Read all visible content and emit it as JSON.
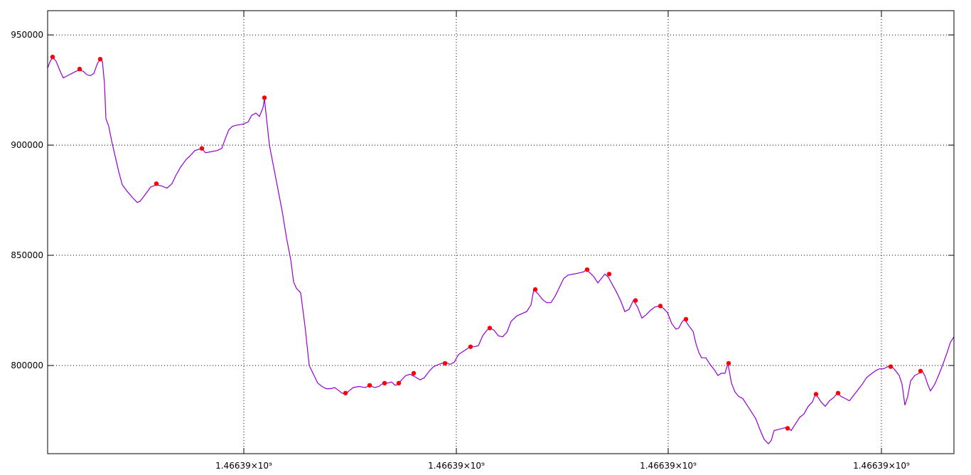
{
  "chart_data": {
    "type": "line",
    "title": "",
    "xlabel": "",
    "ylabel": "",
    "grid": true,
    "legend": "none",
    "colors": {
      "line": "#9400d3",
      "markers": "#ff0000"
    },
    "ylim": [
      760000,
      961000
    ],
    "y_ticks": [
      {
        "value": 800000,
        "label": "800000"
      },
      {
        "value": 850000,
        "label": "850000"
      },
      {
        "value": 900000,
        "label": "900000"
      },
      {
        "value": 950000,
        "label": "950000"
      }
    ],
    "xlim": [
      0,
      1275
    ],
    "x_ticks": [
      {
        "value": 276,
        "label": "1.46639×10⁹"
      },
      {
        "value": 575,
        "label": "1.46639×10⁹"
      },
      {
        "value": 873,
        "label": "1.46639×10⁹"
      },
      {
        "value": 1173,
        "label": "1.46639×10⁹"
      }
    ],
    "series": [
      {
        "type": "line",
        "points": [
          [
            0,
            935000
          ],
          [
            3,
            937500
          ],
          [
            7,
            940000
          ],
          [
            12,
            938000
          ],
          [
            17,
            934000
          ],
          [
            22,
            930500
          ],
          [
            28,
            931500
          ],
          [
            34,
            932500
          ],
          [
            40,
            933500
          ],
          [
            45,
            934000
          ],
          [
            50,
            933500
          ],
          [
            55,
            932000
          ],
          [
            60,
            931500
          ],
          [
            65,
            932500
          ],
          [
            70,
            937000
          ],
          [
            74,
            939000
          ],
          [
            77,
            938000
          ],
          [
            80,
            928000
          ],
          [
            82,
            912000
          ],
          [
            86,
            908500
          ],
          [
            90,
            902000
          ],
          [
            95,
            895000
          ],
          [
            100,
            888000
          ],
          [
            105,
            882000
          ],
          [
            112,
            879000
          ],
          [
            120,
            876000
          ],
          [
            126,
            874000
          ],
          [
            130,
            874500
          ],
          [
            136,
            877000
          ],
          [
            145,
            881000
          ],
          [
            153,
            882000
          ],
          [
            160,
            881500
          ],
          [
            168,
            880500
          ],
          [
            175,
            882500
          ],
          [
            180,
            886000
          ],
          [
            187,
            890000
          ],
          [
            195,
            893500
          ],
          [
            200,
            895000
          ],
          [
            207,
            897500
          ],
          [
            217,
            898500
          ],
          [
            222,
            896500
          ],
          [
            230,
            897000
          ],
          [
            238,
            897500
          ],
          [
            245,
            898500
          ],
          [
            250,
            903000
          ],
          [
            255,
            907000
          ],
          [
            260,
            908500
          ],
          [
            265,
            909000
          ],
          [
            275,
            909500
          ],
          [
            282,
            910500
          ],
          [
            287,
            913500
          ],
          [
            293,
            914500
          ],
          [
            298,
            913000
          ],
          [
            303,
            917000
          ],
          [
            305,
            921000
          ],
          [
            308,
            912000
          ],
          [
            312,
            900000
          ],
          [
            318,
            890000
          ],
          [
            324,
            880000
          ],
          [
            330,
            870000
          ],
          [
            336,
            858000
          ],
          [
            342,
            848000
          ],
          [
            346,
            838000
          ],
          [
            350,
            835000
          ],
          [
            356,
            833000
          ],
          [
            362,
            818000
          ],
          [
            368,
            800000
          ],
          [
            374,
            796000
          ],
          [
            380,
            792000
          ],
          [
            386,
            790500
          ],
          [
            392,
            789500
          ],
          [
            398,
            789500
          ],
          [
            404,
            790000
          ],
          [
            410,
            788500
          ],
          [
            414,
            787500
          ],
          [
            419,
            787000
          ],
          [
            424,
            788500
          ],
          [
            430,
            790000
          ],
          [
            438,
            790500
          ],
          [
            447,
            790000
          ],
          [
            453,
            791000
          ],
          [
            460,
            790000
          ],
          [
            466,
            790500
          ],
          [
            472,
            792000
          ],
          [
            478,
            792000
          ],
          [
            484,
            792500
          ],
          [
            489,
            791000
          ],
          [
            493,
            791500
          ],
          [
            498,
            793500
          ],
          [
            504,
            795500
          ],
          [
            510,
            796000
          ],
          [
            516,
            795000
          ],
          [
            524,
            793500
          ],
          [
            530,
            794500
          ],
          [
            537,
            797500
          ],
          [
            543,
            799500
          ],
          [
            550,
            800500
          ],
          [
            555,
            801000
          ],
          [
            560,
            801500
          ],
          [
            566,
            800500
          ],
          [
            572,
            801500
          ],
          [
            578,
            805000
          ],
          [
            585,
            806500
          ],
          [
            590,
            807500
          ],
          [
            594,
            808500
          ],
          [
            600,
            808500
          ],
          [
            606,
            809000
          ],
          [
            612,
            813500
          ],
          [
            618,
            816000
          ],
          [
            622,
            817000
          ],
          [
            628,
            816000
          ],
          [
            634,
            813500
          ],
          [
            640,
            813000
          ],
          [
            646,
            815000
          ],
          [
            652,
            820000
          ],
          [
            660,
            822500
          ],
          [
            667,
            823500
          ],
          [
            674,
            824500
          ],
          [
            680,
            827500
          ],
          [
            684,
            834500
          ],
          [
            690,
            832500
          ],
          [
            696,
            830000
          ],
          [
            702,
            828500
          ],
          [
            708,
            828500
          ],
          [
            714,
            831500
          ],
          [
            720,
            835500
          ],
          [
            726,
            839500
          ],
          [
            732,
            841000
          ],
          [
            740,
            841500
          ],
          [
            748,
            842000
          ],
          [
            754,
            842500
          ],
          [
            758,
            843500
          ],
          [
            763,
            842000
          ],
          [
            768,
            840500
          ],
          [
            774,
            837500
          ],
          [
            779,
            839500
          ],
          [
            784,
            841500
          ],
          [
            789,
            840000
          ],
          [
            794,
            837000
          ],
          [
            800,
            833500
          ],
          [
            806,
            829500
          ],
          [
            812,
            824500
          ],
          [
            818,
            825500
          ],
          [
            824,
            829500
          ],
          [
            830,
            826500
          ],
          [
            836,
            821500
          ],
          [
            842,
            823000
          ],
          [
            848,
            825000
          ],
          [
            854,
            826500
          ],
          [
            860,
            827000
          ],
          [
            866,
            826000
          ],
          [
            872,
            824000
          ],
          [
            878,
            819000
          ],
          [
            884,
            816500
          ],
          [
            888,
            817000
          ],
          [
            892,
            819500
          ],
          [
            896,
            821000
          ],
          [
            902,
            818000
          ],
          [
            908,
            815500
          ],
          [
            912,
            810000
          ],
          [
            916,
            806000
          ],
          [
            920,
            803500
          ],
          [
            926,
            803500
          ],
          [
            932,
            800500
          ],
          [
            938,
            798000
          ],
          [
            943,
            795500
          ],
          [
            948,
            796500
          ],
          [
            953,
            796500
          ],
          [
            957,
            801000
          ],
          [
            962,
            792000
          ],
          [
            967,
            788000
          ],
          [
            972,
            786000
          ],
          [
            978,
            785000
          ],
          [
            984,
            782000
          ],
          [
            990,
            779000
          ],
          [
            996,
            776000
          ],
          [
            1002,
            771000
          ],
          [
            1008,
            766500
          ],
          [
            1014,
            764500
          ],
          [
            1018,
            766000
          ],
          [
            1022,
            770500
          ],
          [
            1028,
            771000
          ],
          [
            1034,
            771500
          ],
          [
            1040,
            772000
          ],
          [
            1046,
            770500
          ],
          [
            1052,
            773500
          ],
          [
            1058,
            776500
          ],
          [
            1064,
            778000
          ],
          [
            1070,
            781500
          ],
          [
            1076,
            783500
          ],
          [
            1080,
            787000
          ],
          [
            1084,
            785500
          ],
          [
            1088,
            783500
          ],
          [
            1094,
            781500
          ],
          [
            1100,
            784000
          ],
          [
            1106,
            785500
          ],
          [
            1111,
            787500
          ],
          [
            1116,
            786000
          ],
          [
            1122,
            785000
          ],
          [
            1128,
            784000
          ],
          [
            1134,
            786500
          ],
          [
            1140,
            789000
          ],
          [
            1146,
            791500
          ],
          [
            1152,
            794500
          ],
          [
            1158,
            796000
          ],
          [
            1164,
            797500
          ],
          [
            1170,
            798500
          ],
          [
            1176,
            798500
          ],
          [
            1182,
            799500
          ],
          [
            1186,
            800000
          ],
          [
            1192,
            798000
          ],
          [
            1198,
            795500
          ],
          [
            1202,
            791500
          ],
          [
            1206,
            782000
          ],
          [
            1210,
            786000
          ],
          [
            1214,
            793000
          ],
          [
            1220,
            795500
          ],
          [
            1226,
            796500
          ],
          [
            1230,
            797500
          ],
          [
            1234,
            795500
          ],
          [
            1238,
            791500
          ],
          [
            1242,
            788500
          ],
          [
            1248,
            791500
          ],
          [
            1254,
            796000
          ],
          [
            1260,
            801000
          ],
          [
            1266,
            806500
          ],
          [
            1270,
            810500
          ],
          [
            1275,
            813000
          ]
        ],
        "markers": [
          [
            7,
            940000
          ],
          [
            45,
            934500
          ],
          [
            74,
            939000
          ],
          [
            153,
            882500
          ],
          [
            217,
            898500
          ],
          [
            305,
            921500
          ],
          [
            419,
            787500
          ],
          [
            453,
            791000
          ],
          [
            474,
            792000
          ],
          [
            494,
            792000
          ],
          [
            515,
            796500
          ],
          [
            559,
            801000
          ],
          [
            595,
            808500
          ],
          [
            622,
            817000
          ],
          [
            686,
            834500
          ],
          [
            759,
            843500
          ],
          [
            790,
            841500
          ],
          [
            827,
            829500
          ],
          [
            862,
            827000
          ],
          [
            898,
            821000
          ],
          [
            958,
            801000
          ],
          [
            1041,
            771500
          ],
          [
            1081,
            787000
          ],
          [
            1112,
            787500
          ],
          [
            1186,
            799500
          ],
          [
            1228,
            797500
          ]
        ]
      }
    ]
  }
}
